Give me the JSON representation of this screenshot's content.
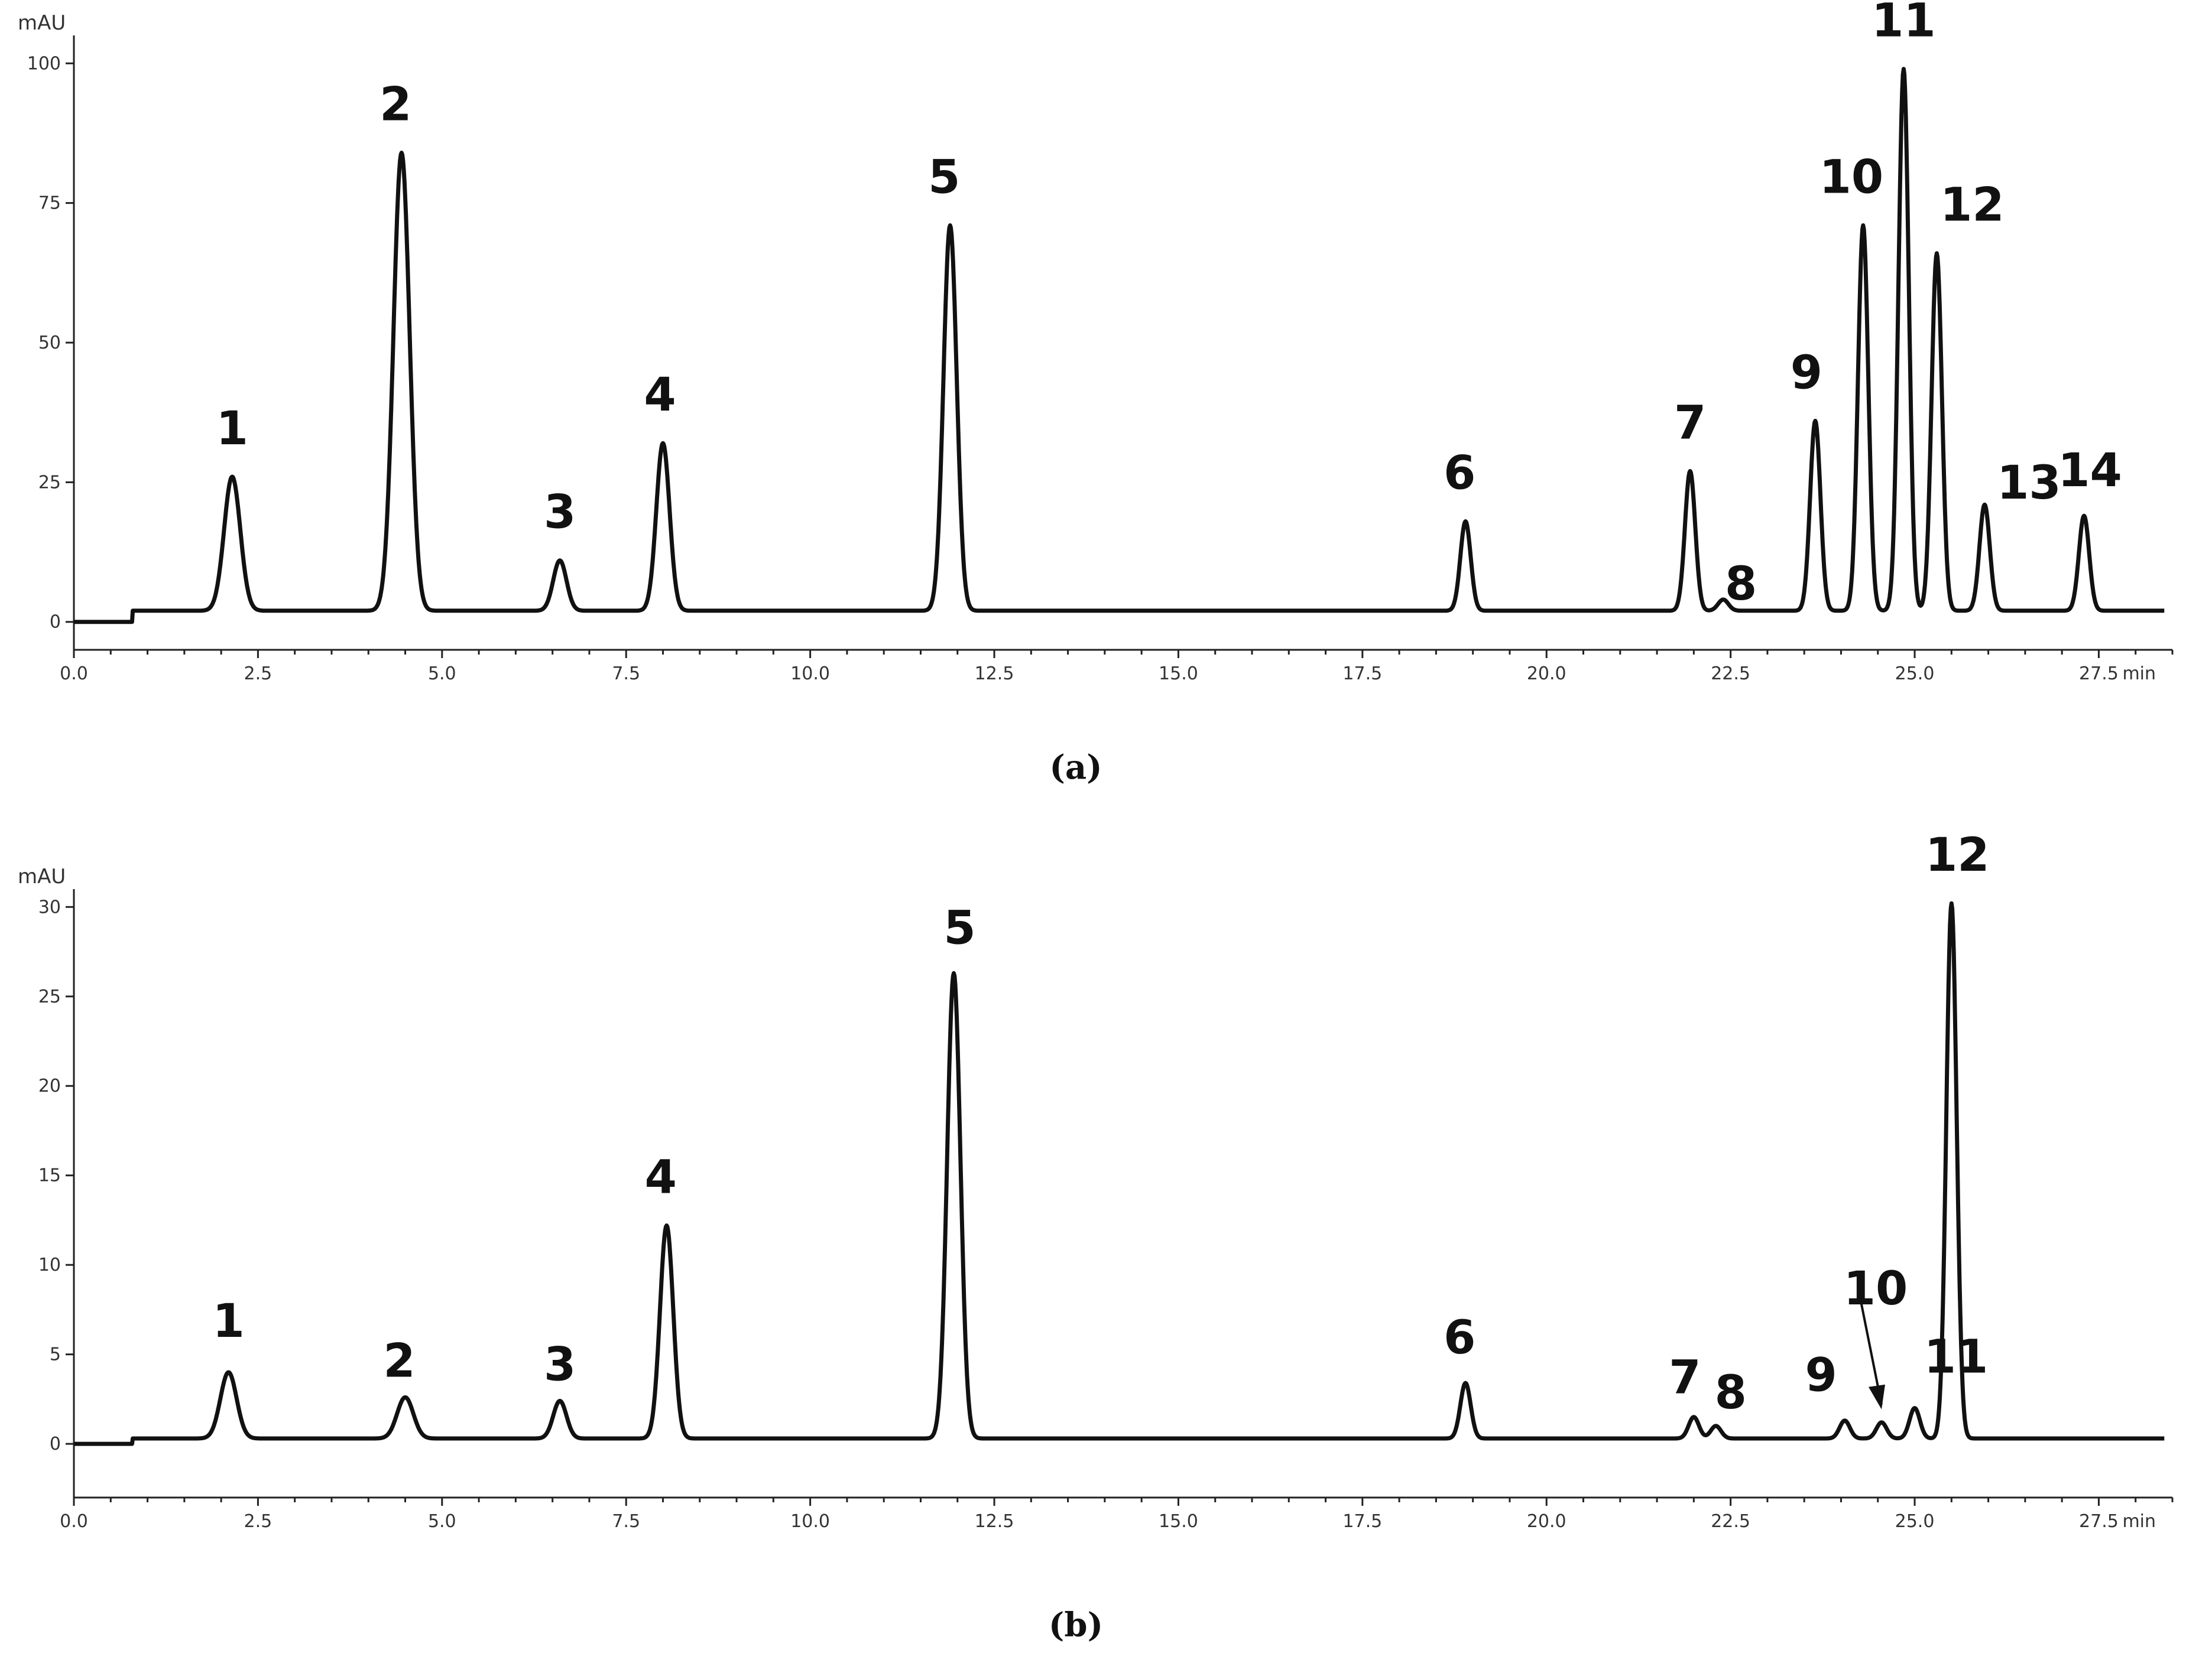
{
  "chart_data": [
    {
      "type": "line",
      "id": "a",
      "caption": "(a)",
      "ylabel": "mAU",
      "xunit": "min",
      "xlim": [
        0,
        28.5
      ],
      "ylim": [
        -5,
        105
      ],
      "xticks": [
        "0.0",
        "2.5",
        "5.0",
        "7.5",
        "10.0",
        "12.5",
        "15.0",
        "17.5",
        "20.0",
        "22.5",
        "25.0",
        "27.5"
      ],
      "yticks": [
        "0",
        "25",
        "50",
        "75",
        "100"
      ],
      "baseline": 2,
      "peaks": [
        {
          "label": "1",
          "x": 2.15,
          "y": 26
        },
        {
          "label": "2",
          "x": 4.45,
          "y": 84
        },
        {
          "label": "3",
          "x": 6.6,
          "y": 11
        },
        {
          "label": "4",
          "x": 8.0,
          "y": 32
        },
        {
          "label": "5",
          "x": 11.9,
          "y": 71
        },
        {
          "label": "6",
          "x": 18.9,
          "y": 18
        },
        {
          "label": "7",
          "x": 21.95,
          "y": 27
        },
        {
          "label": "8",
          "x": 22.4,
          "y": 4
        },
        {
          "label": "9",
          "x": 23.65,
          "y": 36
        },
        {
          "label": "10",
          "x": 24.3,
          "y": 71
        },
        {
          "label": "11",
          "x": 24.85,
          "y": 99
        },
        {
          "label": "12",
          "x": 25.3,
          "y": 66
        },
        {
          "label": "13",
          "x": 25.95,
          "y": 21
        },
        {
          "label": "14",
          "x": 27.3,
          "y": 19
        }
      ]
    },
    {
      "type": "line",
      "id": "b",
      "caption": "(b)",
      "ylabel": "mAU",
      "xunit": "min",
      "xlim": [
        0,
        28.5
      ],
      "ylim": [
        -3,
        31
      ],
      "xticks": [
        "0.0",
        "2.5",
        "5.0",
        "7.5",
        "10.0",
        "12.5",
        "15.0",
        "17.5",
        "20.0",
        "22.5",
        "25.0",
        "27.5"
      ],
      "yticks": [
        "0",
        "5",
        "10",
        "15",
        "20",
        "25",
        "30"
      ],
      "baseline": 0.3,
      "peaks": [
        {
          "label": "1",
          "x": 2.1,
          "y": 4
        },
        {
          "label": "2",
          "x": 4.5,
          "y": 2.6
        },
        {
          "label": "3",
          "x": 6.6,
          "y": 2.4
        },
        {
          "label": "4",
          "x": 8.05,
          "y": 12.2
        },
        {
          "label": "5",
          "x": 11.95,
          "y": 26.3
        },
        {
          "label": "6",
          "x": 18.9,
          "y": 3.4
        },
        {
          "label": "7",
          "x": 22.0,
          "y": 1.5
        },
        {
          "label": "8",
          "x": 22.3,
          "y": 1.0
        },
        {
          "label": "9",
          "x": 24.05,
          "y": 1.3
        },
        {
          "label": "10",
          "x": 24.55,
          "y": 1.2
        },
        {
          "label": "11",
          "x": 25.0,
          "y": 2.0
        },
        {
          "label": "12",
          "x": 25.5,
          "y": 30.2
        }
      ]
    }
  ]
}
